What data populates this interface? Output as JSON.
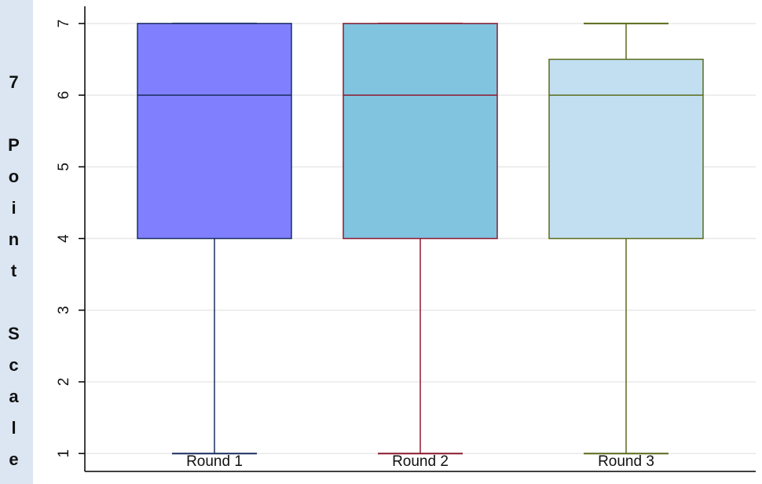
{
  "chart_data": {
    "type": "box",
    "y_label": "7 Point Scale",
    "categories": [
      "Round 1",
      "Round 2",
      "Round 3"
    ],
    "boxes": [
      {
        "min": 1,
        "q1": 4,
        "median": 6,
        "q3": 7,
        "max": 7,
        "color": "#8080ff",
        "line_color": "#1a2e5e"
      },
      {
        "min": 1,
        "q1": 4,
        "median": 6,
        "q3": 7,
        "max": 7,
        "color": "#80c4e0",
        "line_color": "#8b1a2e"
      },
      {
        "min": 1,
        "q1": 4,
        "median": 6,
        "q3": 6.5,
        "max": 7,
        "color": "#c2dff2",
        "line_color": "#5a6b1a"
      }
    ],
    "ylim": [
      0.75,
      7.24
    ],
    "yticks": [
      1,
      2,
      3,
      4,
      5,
      6,
      7
    ],
    "grid": true
  }
}
